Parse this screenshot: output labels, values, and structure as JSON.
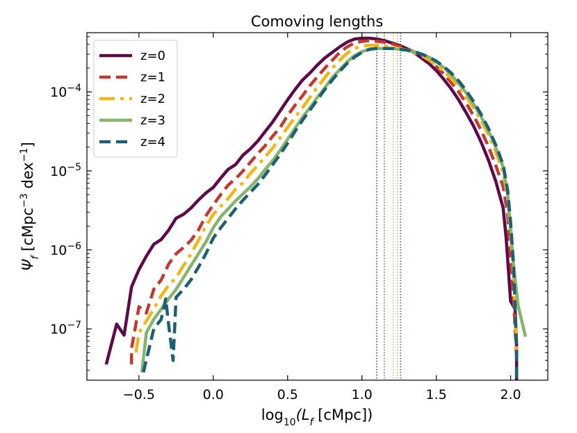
{
  "chart_data": {
    "type": "line",
    "title": "Comoving lengths",
    "xlabel": {
      "prefix": "log",
      "sub": "10",
      "mid": "(L",
      "sub2": "f",
      "suffix": " [cMpc])"
    },
    "ylabel": {
      "main": "Ψ",
      "sub": "f",
      "unit1": " [cMpc",
      "exp1": "−3",
      "unit2": " dex",
      "exp2": "−1",
      "close": "]"
    },
    "xlim": [
      -0.85,
      2.25
    ],
    "ylim_log10": [
      -7.65,
      -3.25
    ],
    "xscale": "linear",
    "yscale": "log",
    "xticks": [
      {
        "value": -0.5,
        "label": "−0.5"
      },
      {
        "value": 0.0,
        "label": "0.0"
      },
      {
        "value": 0.5,
        "label": "0.5"
      },
      {
        "value": 1.0,
        "label": "1.0"
      },
      {
        "value": 1.5,
        "label": "1.5"
      },
      {
        "value": 2.0,
        "label": "2.0"
      }
    ],
    "yticks": [
      {
        "log10": -7,
        "base": "10",
        "exp": "−7"
      },
      {
        "log10": -6,
        "base": "10",
        "exp": "−6"
      },
      {
        "log10": -5,
        "base": "10",
        "exp": "−5"
      },
      {
        "log10": -4,
        "base": "10",
        "exp": "−4"
      }
    ],
    "legend_position": "top-left",
    "grid": false,
    "series": [
      {
        "name": "z=0",
        "color": "#5c0a4a",
        "dash": "",
        "vline": 1.1,
        "points": [
          [
            -0.72,
            -7.45
          ],
          [
            -0.65,
            -6.94
          ],
          [
            -0.6,
            -7.08
          ],
          [
            -0.55,
            -6.47
          ],
          [
            -0.5,
            -6.25
          ],
          [
            -0.45,
            -6.08
          ],
          [
            -0.4,
            -5.93
          ],
          [
            -0.35,
            -5.87
          ],
          [
            -0.3,
            -5.75
          ],
          [
            -0.25,
            -5.6
          ],
          [
            -0.2,
            -5.55
          ],
          [
            -0.15,
            -5.47
          ],
          [
            -0.1,
            -5.37
          ],
          [
            -0.05,
            -5.28
          ],
          [
            0.0,
            -5.21
          ],
          [
            0.05,
            -5.09
          ],
          [
            0.1,
            -4.98
          ],
          [
            0.15,
            -4.92
          ],
          [
            0.2,
            -4.8
          ],
          [
            0.25,
            -4.72
          ],
          [
            0.3,
            -4.62
          ],
          [
            0.35,
            -4.5
          ],
          [
            0.4,
            -4.38
          ],
          [
            0.45,
            -4.24
          ],
          [
            0.5,
            -4.1
          ],
          [
            0.55,
            -3.97
          ],
          [
            0.6,
            -3.85
          ],
          [
            0.65,
            -3.76
          ],
          [
            0.7,
            -3.66
          ],
          [
            0.75,
            -3.57
          ],
          [
            0.8,
            -3.5
          ],
          [
            0.85,
            -3.43
          ],
          [
            0.9,
            -3.37
          ],
          [
            0.95,
            -3.33
          ],
          [
            1.0,
            -3.32
          ],
          [
            1.05,
            -3.32
          ],
          [
            1.1,
            -3.33
          ],
          [
            1.15,
            -3.35
          ],
          [
            1.2,
            -3.38
          ],
          [
            1.25,
            -3.41
          ],
          [
            1.3,
            -3.45
          ],
          [
            1.35,
            -3.5
          ],
          [
            1.4,
            -3.57
          ],
          [
            1.45,
            -3.64
          ],
          [
            1.5,
            -3.73
          ],
          [
            1.55,
            -3.84
          ],
          [
            1.6,
            -3.96
          ],
          [
            1.65,
            -4.1
          ],
          [
            1.7,
            -4.26
          ],
          [
            1.75,
            -4.43
          ],
          [
            1.8,
            -4.63
          ],
          [
            1.85,
            -4.86
          ],
          [
            1.9,
            -5.13
          ],
          [
            1.95,
            -5.47
          ],
          [
            1.97,
            -5.85
          ],
          [
            2.0,
            -6.65
          ],
          [
            2.03,
            -6.75
          ],
          [
            2.04,
            -7.2
          ],
          [
            2.04,
            -7.65
          ]
        ]
      },
      {
        "name": "z=1",
        "color": "#c03a2f",
        "dash": "16 8",
        "vline": 1.15,
        "points": [
          [
            -0.55,
            -7.45
          ],
          [
            -0.55,
            -7.25
          ],
          [
            -0.5,
            -6.72
          ],
          [
            -0.45,
            -6.8
          ],
          [
            -0.4,
            -6.5
          ],
          [
            -0.35,
            -6.38
          ],
          [
            -0.3,
            -6.18
          ],
          [
            -0.25,
            -6.05
          ],
          [
            -0.2,
            -5.97
          ],
          [
            -0.15,
            -5.88
          ],
          [
            -0.1,
            -5.75
          ],
          [
            -0.05,
            -5.57
          ],
          [
            0.0,
            -5.43
          ],
          [
            0.05,
            -5.3
          ],
          [
            0.1,
            -5.18
          ],
          [
            0.15,
            -5.1
          ],
          [
            0.2,
            -5.0
          ],
          [
            0.25,
            -4.89
          ],
          [
            0.3,
            -4.78
          ],
          [
            0.35,
            -4.68
          ],
          [
            0.4,
            -4.56
          ],
          [
            0.45,
            -4.45
          ],
          [
            0.5,
            -4.3
          ],
          [
            0.55,
            -4.17
          ],
          [
            0.6,
            -4.05
          ],
          [
            0.65,
            -3.92
          ],
          [
            0.7,
            -3.81
          ],
          [
            0.75,
            -3.7
          ],
          [
            0.8,
            -3.6
          ],
          [
            0.85,
            -3.5
          ],
          [
            0.9,
            -3.43
          ],
          [
            0.95,
            -3.38
          ],
          [
            1.0,
            -3.36
          ],
          [
            1.05,
            -3.35
          ],
          [
            1.1,
            -3.36
          ],
          [
            1.15,
            -3.37
          ],
          [
            1.2,
            -3.39
          ],
          [
            1.25,
            -3.42
          ],
          [
            1.3,
            -3.45
          ],
          [
            1.35,
            -3.49
          ],
          [
            1.4,
            -3.54
          ],
          [
            1.45,
            -3.6
          ],
          [
            1.5,
            -3.68
          ],
          [
            1.55,
            -3.77
          ],
          [
            1.6,
            -3.88
          ],
          [
            1.65,
            -4.0
          ],
          [
            1.7,
            -4.14
          ],
          [
            1.75,
            -4.3
          ],
          [
            1.8,
            -4.48
          ],
          [
            1.85,
            -4.69
          ],
          [
            1.9,
            -4.93
          ],
          [
            1.95,
            -5.2
          ],
          [
            1.98,
            -5.55
          ],
          [
            2.0,
            -6.1
          ],
          [
            2.02,
            -6.6
          ],
          [
            2.03,
            -7.0
          ],
          [
            2.04,
            -7.35
          ]
        ]
      },
      {
        "name": "z=2",
        "color": "#f2b619",
        "dash": "22 8 5 8",
        "vline": 1.21,
        "points": [
          [
            -0.52,
            -7.3
          ],
          [
            -0.5,
            -7.05
          ],
          [
            -0.45,
            -6.9
          ],
          [
            -0.4,
            -6.75
          ],
          [
            -0.35,
            -6.58
          ],
          [
            -0.3,
            -6.45
          ],
          [
            -0.25,
            -6.35
          ],
          [
            -0.2,
            -6.2
          ],
          [
            -0.15,
            -6.05
          ],
          [
            -0.1,
            -5.88
          ],
          [
            -0.05,
            -5.7
          ],
          [
            0.0,
            -5.55
          ],
          [
            0.05,
            -5.45
          ],
          [
            0.1,
            -5.35
          ],
          [
            0.15,
            -5.23
          ],
          [
            0.2,
            -5.15
          ],
          [
            0.25,
            -5.03
          ],
          [
            0.3,
            -4.93
          ],
          [
            0.35,
            -4.82
          ],
          [
            0.4,
            -4.71
          ],
          [
            0.45,
            -4.58
          ],
          [
            0.5,
            -4.45
          ],
          [
            0.55,
            -4.32
          ],
          [
            0.6,
            -4.2
          ],
          [
            0.65,
            -4.07
          ],
          [
            0.7,
            -3.94
          ],
          [
            0.75,
            -3.82
          ],
          [
            0.8,
            -3.7
          ],
          [
            0.85,
            -3.6
          ],
          [
            0.9,
            -3.51
          ],
          [
            0.95,
            -3.45
          ],
          [
            1.0,
            -3.42
          ],
          [
            1.05,
            -3.41
          ],
          [
            1.1,
            -3.41
          ],
          [
            1.15,
            -3.42
          ],
          [
            1.2,
            -3.43
          ],
          [
            1.25,
            -3.45
          ],
          [
            1.3,
            -3.47
          ],
          [
            1.35,
            -3.5
          ],
          [
            1.4,
            -3.54
          ],
          [
            1.45,
            -3.59
          ],
          [
            1.5,
            -3.66
          ],
          [
            1.55,
            -3.74
          ],
          [
            1.6,
            -3.83
          ],
          [
            1.65,
            -3.94
          ],
          [
            1.7,
            -4.06
          ],
          [
            1.75,
            -4.2
          ],
          [
            1.8,
            -4.36
          ],
          [
            1.85,
            -4.54
          ],
          [
            1.9,
            -4.76
          ],
          [
            1.95,
            -5.02
          ],
          [
            1.98,
            -5.35
          ],
          [
            2.0,
            -5.8
          ],
          [
            2.02,
            -6.3
          ],
          [
            2.03,
            -6.75
          ],
          [
            2.04,
            -7.3
          ]
        ]
      },
      {
        "name": "z=3",
        "color": "#86b46f",
        "dash": "",
        "vline": 1.24,
        "points": [
          [
            -0.48,
            -7.55
          ],
          [
            -0.45,
            -7.05
          ],
          [
            -0.4,
            -6.88
          ],
          [
            -0.35,
            -6.75
          ],
          [
            -0.3,
            -6.62
          ],
          [
            -0.25,
            -6.5
          ],
          [
            -0.2,
            -6.35
          ],
          [
            -0.15,
            -6.2
          ],
          [
            -0.1,
            -6.05
          ],
          [
            -0.05,
            -5.9
          ],
          [
            0.0,
            -5.72
          ],
          [
            0.05,
            -5.58
          ],
          [
            0.1,
            -5.48
          ],
          [
            0.15,
            -5.38
          ],
          [
            0.2,
            -5.29
          ],
          [
            0.25,
            -5.2
          ],
          [
            0.3,
            -5.1
          ],
          [
            0.35,
            -4.98
          ],
          [
            0.4,
            -4.87
          ],
          [
            0.45,
            -4.74
          ],
          [
            0.5,
            -4.6
          ],
          [
            0.55,
            -4.46
          ],
          [
            0.6,
            -4.32
          ],
          [
            0.65,
            -4.2
          ],
          [
            0.7,
            -4.07
          ],
          [
            0.75,
            -3.95
          ],
          [
            0.8,
            -3.82
          ],
          [
            0.85,
            -3.72
          ],
          [
            0.9,
            -3.62
          ],
          [
            0.95,
            -3.54
          ],
          [
            1.0,
            -3.49
          ],
          [
            1.05,
            -3.46
          ],
          [
            1.1,
            -3.45
          ],
          [
            1.15,
            -3.45
          ],
          [
            1.2,
            -3.45
          ],
          [
            1.25,
            -3.46
          ],
          [
            1.3,
            -3.47
          ],
          [
            1.35,
            -3.49
          ],
          [
            1.4,
            -3.52
          ],
          [
            1.45,
            -3.56
          ],
          [
            1.5,
            -3.62
          ],
          [
            1.55,
            -3.69
          ],
          [
            1.6,
            -3.78
          ],
          [
            1.65,
            -3.89
          ],
          [
            1.7,
            -4.01
          ],
          [
            1.75,
            -4.15
          ],
          [
            1.8,
            -4.31
          ],
          [
            1.85,
            -4.49
          ],
          [
            1.9,
            -4.7
          ],
          [
            1.95,
            -4.95
          ],
          [
            1.98,
            -5.3
          ],
          [
            2.0,
            -5.72
          ],
          [
            2.02,
            -6.2
          ],
          [
            2.05,
            -6.7
          ],
          [
            2.1,
            -7.1
          ]
        ]
      },
      {
        "name": "z=4",
        "color": "#1f5f73",
        "dash": "16 8",
        "vline": 1.26,
        "points": [
          [
            -0.47,
            -7.55
          ],
          [
            -0.4,
            -7.0
          ],
          [
            -0.35,
            -6.88
          ],
          [
            -0.32,
            -6.62
          ],
          [
            -0.3,
            -6.95
          ],
          [
            -0.28,
            -7.25
          ],
          [
            -0.27,
            -7.4
          ],
          [
            -0.25,
            -6.6
          ],
          [
            -0.2,
            -6.5
          ],
          [
            -0.15,
            -6.38
          ],
          [
            -0.1,
            -6.22
          ],
          [
            -0.05,
            -6.05
          ],
          [
            0.0,
            -5.85
          ],
          [
            0.05,
            -5.72
          ],
          [
            0.1,
            -5.6
          ],
          [
            0.15,
            -5.48
          ],
          [
            0.2,
            -5.37
          ],
          [
            0.25,
            -5.27
          ],
          [
            0.3,
            -5.17
          ],
          [
            0.35,
            -5.05
          ],
          [
            0.4,
            -4.92
          ],
          [
            0.45,
            -4.79
          ],
          [
            0.5,
            -4.65
          ],
          [
            0.55,
            -4.5
          ],
          [
            0.6,
            -4.36
          ],
          [
            0.65,
            -4.23
          ],
          [
            0.7,
            -4.1
          ],
          [
            0.75,
            -3.97
          ],
          [
            0.8,
            -3.85
          ],
          [
            0.85,
            -3.74
          ],
          [
            0.9,
            -3.64
          ],
          [
            0.95,
            -3.56
          ],
          [
            1.0,
            -3.5
          ],
          [
            1.05,
            -3.46
          ],
          [
            1.1,
            -3.45
          ],
          [
            1.15,
            -3.45
          ],
          [
            1.2,
            -3.45
          ],
          [
            1.25,
            -3.46
          ],
          [
            1.3,
            -3.47
          ],
          [
            1.35,
            -3.49
          ],
          [
            1.4,
            -3.52
          ],
          [
            1.45,
            -3.56
          ],
          [
            1.5,
            -3.61
          ],
          [
            1.55,
            -3.68
          ],
          [
            1.6,
            -3.76
          ],
          [
            1.65,
            -3.86
          ],
          [
            1.7,
            -3.98
          ],
          [
            1.75,
            -4.12
          ],
          [
            1.8,
            -4.28
          ],
          [
            1.85,
            -4.46
          ],
          [
            1.9,
            -4.67
          ],
          [
            1.95,
            -4.92
          ],
          [
            1.98,
            -5.25
          ],
          [
            2.0,
            -5.65
          ],
          [
            2.02,
            -6.2
          ],
          [
            2.03,
            -6.7
          ],
          [
            2.04,
            -7.3
          ],
          [
            2.04,
            -7.65
          ]
        ]
      }
    ]
  }
}
